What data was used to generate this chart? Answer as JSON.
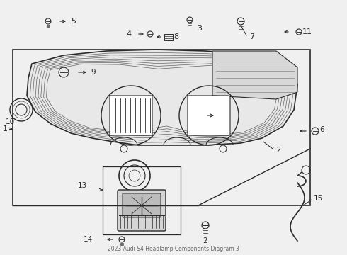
{
  "bg_color": "#f0f0f0",
  "line_color": "#2a2a2a",
  "white": "#ffffff",
  "gray_light": "#e8e8e8",
  "gray_mid": "#c8c8c8"
}
